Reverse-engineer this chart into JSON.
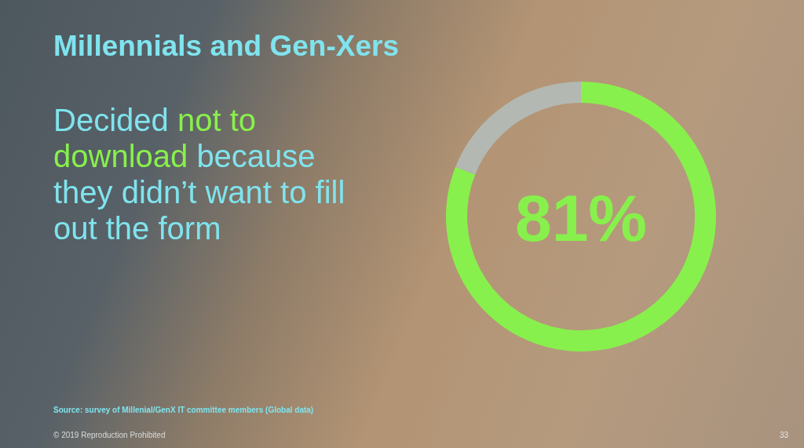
{
  "chart_data": {
    "type": "donut",
    "title": "Millennials and Gen-Xers",
    "subtitle": "Decided not to download because they didn’t want to fill out the form",
    "categories": [
      null,
      null
    ],
    "values": [
      81,
      19
    ],
    "colors": [
      "#88f04c",
      "#b3b8b2"
    ],
    "annotations": [
      "81%",
      "Source: survey of Millenial/GenX IT committee members (Global data)",
      "© 2019 Reproduction Prohibited",
      "33"
    ]
  }
}
